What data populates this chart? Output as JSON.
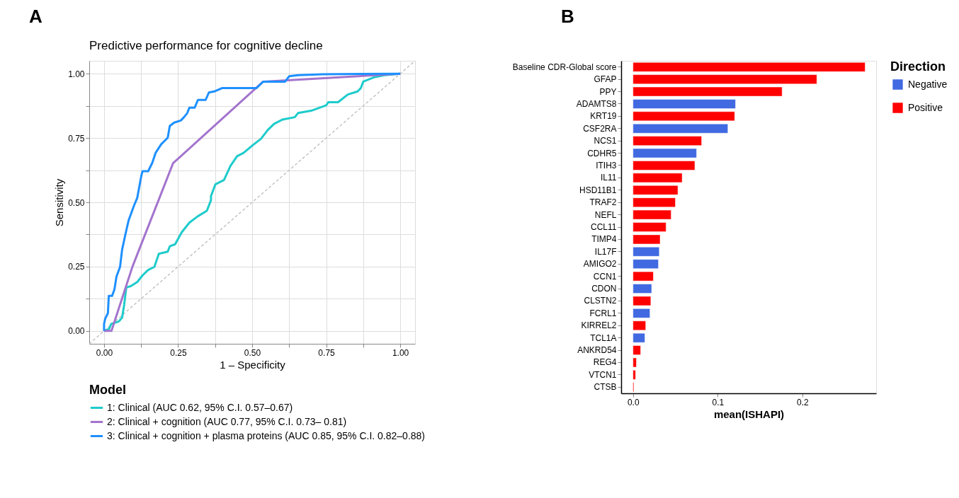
{
  "chart_data": [
    {
      "type": "line",
      "title": "Predictive performance for cognitive decline",
      "xlabel": "1 – Specificity",
      "ylabel": "Sensitivity",
      "legend_title": "Model",
      "legend": "bottom",
      "grid": true,
      "marker": "none",
      "annotations": [
        "A"
      ],
      "xlim": [
        -0.05,
        1.05
      ],
      "ylim": [
        -0.05,
        1.05
      ],
      "xticks": [
        {
          "value": 0,
          "label": "0.00"
        },
        {
          "value": 0.125,
          "label": null
        },
        {
          "value": 0.25,
          "label": "0.25"
        },
        {
          "value": 0.375,
          "label": null
        },
        {
          "value": 0.5,
          "label": "0.50"
        },
        {
          "value": 0.625,
          "label": null
        },
        {
          "value": 0.75,
          "label": "0.75"
        },
        {
          "value": 0.875,
          "label": null
        },
        {
          "value": 1,
          "label": "1.00"
        }
      ],
      "yticks": [
        {
          "value": 0,
          "label": "0.00"
        },
        {
          "value": 0.125,
          "label": null
        },
        {
          "value": 0.25,
          "label": "0.25"
        },
        {
          "value": 0.375,
          "label": null
        },
        {
          "value": 0.5,
          "label": "0.50"
        },
        {
          "value": 0.625,
          "label": null
        },
        {
          "value": 0.75,
          "label": "0.75"
        },
        {
          "value": 0.875,
          "label": null
        },
        {
          "value": 1,
          "label": "1.00"
        }
      ],
      "series": [
        {
          "color": "#bbbbbb",
          "line_style": "dashed",
          "x": [
            -0.05,
            1.05
          ],
          "values": [
            -0.05,
            1.05
          ]
        },
        {
          "name": "1: Clinical (AUC 0.62, 95% C.I. 0.57–0.67)",
          "color": "#1fcbcb",
          "line_style": "solid",
          "x": [
            0,
            0.017,
            0.024,
            0.05,
            0.061,
            0.068,
            0.075,
            0.09,
            0.112,
            0.13,
            0.149,
            0.17,
            0.185,
            0.215,
            0.222,
            0.24,
            0.262,
            0.288,
            0.317,
            0.347,
            0.361,
            0.361,
            0.376,
            0.405,
            0.427,
            0.449,
            0.471,
            0.501,
            0.53,
            0.552,
            0.574,
            0.603,
            0.644,
            0.655,
            0.699,
            0.75,
            0.757,
            0.79,
            0.823,
            0.856,
            0.867,
            0.875,
            0.911,
            0.947,
            1
          ],
          "values": [
            0,
            0.008,
            0.027,
            0.037,
            0.052,
            0.102,
            0.169,
            0.174,
            0.19,
            0.216,
            0.237,
            0.249,
            0.3,
            0.308,
            0.329,
            0.337,
            0.383,
            0.421,
            0.446,
            0.467,
            0.508,
            0.524,
            0.57,
            0.587,
            0.642,
            0.679,
            0.692,
            0.721,
            0.747,
            0.78,
            0.805,
            0.822,
            0.831,
            0.847,
            0.856,
            0.877,
            0.889,
            0.889,
            0.919,
            0.931,
            0.944,
            0.969,
            0.986,
            0.994,
            1
          ]
        },
        {
          "name": "2: Clinical + cognition (AUC 0.77, 95% C.I. 0.73– 0.81)",
          "color": "#a374cd",
          "line_style": "solid",
          "x": [
            0,
            0.025,
            0.096,
            0.233,
            0.537,
            1
          ],
          "values": [
            0,
            0,
            0.25,
            0.652,
            0.969,
            1
          ]
        },
        {
          "name": "3: Clinical + cognition + plasma proteins (AUC 0.85, 95% C.I. 0.82–0.88)",
          "color": "#1e90ff",
          "line_style": "solid",
          "x": [
            0,
            0,
            0.004,
            0.013,
            0.016,
            0.027,
            0.035,
            0.042,
            0.054,
            0.061,
            0.072,
            0.083,
            0.101,
            0.112,
            0.126,
            0.13,
            0.149,
            0.163,
            0.174,
            0.193,
            0.215,
            0.222,
            0.237,
            0.259,
            0.27,
            0.281,
            0.288,
            0.306,
            0.317,
            0.343,
            0.354,
            0.372,
            0.398,
            0.515,
            0.537,
            0.611,
            0.625,
            0.655,
            0.736,
            1
          ],
          "values": [
            0,
            0.027,
            0.048,
            0.069,
            0.136,
            0.136,
            0.161,
            0.211,
            0.249,
            0.316,
            0.375,
            0.43,
            0.487,
            0.517,
            0.604,
            0.621,
            0.621,
            0.654,
            0.692,
            0.726,
            0.751,
            0.797,
            0.81,
            0.818,
            0.831,
            0.847,
            0.868,
            0.868,
            0.898,
            0.898,
            0.927,
            0.931,
            0.944,
            0.944,
            0.969,
            0.969,
            0.99,
            0.994,
            0.998,
            1
          ]
        }
      ]
    },
    {
      "type": "bar",
      "orientation": "horizontal",
      "xlabel": "mean(ISHAPI)",
      "legend_title": "Direction",
      "legend": "right",
      "grid": false,
      "annotations": [
        "B"
      ],
      "categories": [
        "Baseline CDR-Global score",
        "GFAP",
        "PPY",
        "ADAMTS8",
        "KRT19",
        "CSF2RA",
        "NCS1",
        "CDHR5",
        "ITIH3",
        "IL11",
        "HSD11B1",
        "TRAF2",
        "NEFL",
        "CCL11",
        "TIMP4",
        "IL17F",
        "AMIGO2",
        "CCN1",
        "CDON",
        "CLSTN2",
        "FCRL1",
        "KIRREL2",
        "TCL1A",
        "ANKRD54",
        "REG4",
        "VTCN1",
        "CTSB"
      ],
      "xlim": [
        -0.014,
        0.287
      ],
      "xticks": [
        {
          "value": 0,
          "label": "0.0"
        },
        0.1,
        0.2
      ],
      "series": [
        {
          "name": "Negative",
          "color": "#4169e1",
          "values": [
            null,
            null,
            null,
            0.121,
            null,
            0.112,
            null,
            0.075,
            null,
            null,
            null,
            null,
            null,
            null,
            null,
            0.031,
            0.03,
            null,
            0.022,
            null,
            0.02,
            null,
            0.014,
            null,
            null,
            null,
            null
          ]
        },
        {
          "name": "Positive",
          "color": "#ff0000",
          "values": [
            0.274,
            0.217,
            0.176,
            null,
            0.12,
            null,
            0.081,
            null,
            0.073,
            0.058,
            0.053,
            0.05,
            0.045,
            0.039,
            0.032,
            null,
            null,
            0.024,
            null,
            0.021,
            null,
            0.015,
            null,
            0.009,
            0.004,
            0.003,
            0.001
          ]
        }
      ]
    }
  ]
}
